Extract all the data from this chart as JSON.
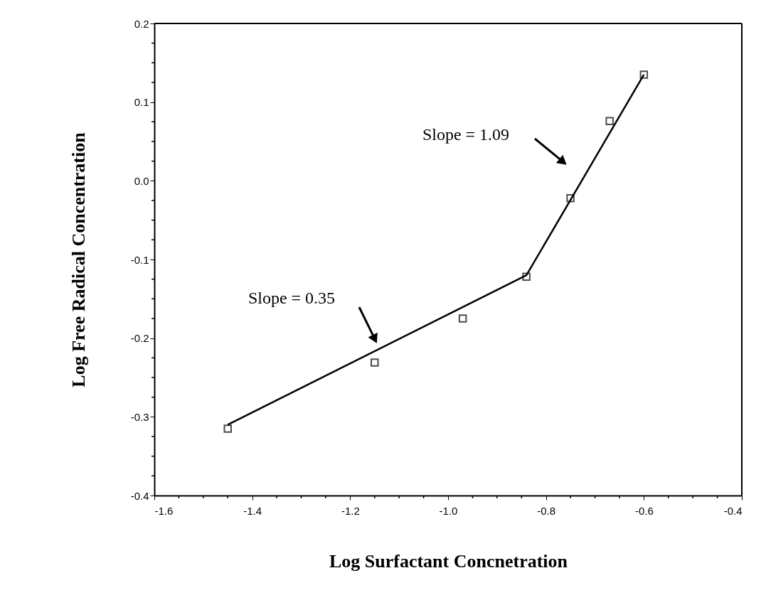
{
  "chart_data": {
    "type": "scatter",
    "xlabel": "Log Surfactant Concnetration",
    "ylabel": "Log Free Radical Concentration",
    "x": [
      -1.45,
      -1.15,
      -0.97,
      -0.84,
      -0.75,
      -0.67,
      -0.6
    ],
    "series": [
      {
        "color": "#000000",
        "marker": "square",
        "values": [
          -0.315,
          -0.231,
          -0.175,
          -0.122,
          -0.022,
          0.076,
          0.135
        ]
      },
      {
        "type": "line",
        "color": "#000000",
        "marker": "none",
        "line_style": "solid",
        "x": [
          -1.45,
          -0.84,
          -0.6
        ],
        "values": [
          -0.31,
          -0.12,
          0.135
        ]
      }
    ],
    "annotations": [
      "Slope = 0.35",
      "Slope = 1.09"
    ],
    "xlim": [
      -1.6,
      -0.4
    ],
    "ylim": [
      -0.4,
      0.2
    ],
    "xticks": [
      -1.6,
      -1.4,
      -1.2,
      {
        "value": -1.0,
        "label": "-1.0"
      },
      -0.8,
      -0.6,
      -0.4
    ],
    "yticks": [
      -0.4,
      -0.3,
      -0.2,
      -0.1,
      {
        "value": 0,
        "label": "0.0"
      },
      0.1,
      0.2
    ],
    "grid": false
  }
}
